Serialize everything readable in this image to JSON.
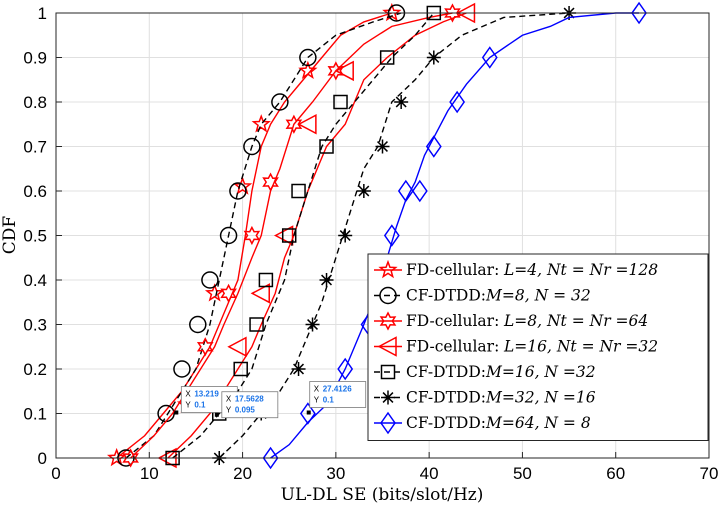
{
  "chart_data": {
    "type": "line",
    "xlabel": "UL-DL SE (bits/slot/Hz)",
    "ylabel": "CDF",
    "xlim": [
      0,
      70
    ],
    "ylim": [
      0,
      1
    ],
    "xticks": [
      0,
      10,
      20,
      30,
      40,
      50,
      60,
      70
    ],
    "yticks": [
      0,
      0.1,
      0.2,
      0.3,
      0.4,
      0.5,
      0.6,
      0.7,
      0.8,
      0.9,
      1
    ],
    "xtick_labels": [
      "0",
      "10",
      "20",
      "30",
      "40",
      "50",
      "60",
      "70"
    ],
    "ytick_labels": [
      "0",
      "0.1",
      "0.2",
      "0.3",
      "0.4",
      "0.5",
      "0.6",
      "0.7",
      "0.8",
      "0.9",
      "1"
    ],
    "grid": true,
    "legend_position": "right-middle",
    "series": [
      {
        "name": "FD-cellular",
        "legend_label": "FD-cellular:",
        "legend_expr": "L=4, Nt = Nr =128",
        "color": "#ff0000",
        "dash": "solid",
        "marker": "pentagram",
        "x": [
          6.5,
          9.5,
          11.5,
          13.5,
          15.0,
          16.5,
          17.5,
          18.5,
          19.5,
          20.3,
          21.0,
          22.0,
          23.0,
          24.5,
          26.5,
          28.5,
          30.5,
          33.0,
          36.0
        ],
        "y": [
          0,
          0.05,
          0.1,
          0.15,
          0.2,
          0.25,
          0.3,
          0.35,
          0.4,
          0.5,
          0.6,
          0.7,
          0.75,
          0.8,
          0.85,
          0.9,
          0.95,
          0.98,
          1
        ],
        "marker_x": [
          6.5,
          14.0,
          17.0,
          20.0,
          22.0,
          27.0,
          36.0
        ],
        "marker_y": [
          0,
          0.12,
          0.37,
          0.61,
          0.75,
          0.87,
          1
        ]
      },
      {
        "name": "CF-DTDD",
        "legend_label": "CF-DTDD:",
        "legend_expr": "M=8, N = 32",
        "color": "#000000",
        "dash": "dashed",
        "marker": "circle",
        "x": [
          7.5,
          10.5,
          12.0,
          13.5,
          15.0,
          16.5,
          17.5,
          18.5,
          19.5,
          21.0,
          22.0,
          24.0,
          27.0,
          30.0,
          34.0,
          37.0
        ],
        "y": [
          0,
          0.05,
          0.1,
          0.15,
          0.2,
          0.3,
          0.4,
          0.5,
          0.6,
          0.7,
          0.75,
          0.8,
          0.9,
          0.95,
          0.98,
          1
        ],
        "marker_x": [
          7.5,
          11.8,
          13.5,
          15.2,
          16.5,
          18.5,
          19.5,
          21.0,
          24.0,
          27.0,
          36.5
        ],
        "marker_y": [
          0,
          0.1,
          0.2,
          0.3,
          0.4,
          0.5,
          0.6,
          0.7,
          0.8,
          0.9,
          1
        ]
      },
      {
        "name": "FD-cellular",
        "legend_label": "FD-cellular:",
        "legend_expr": "L=8, Nt = Nr =64",
        "color": "#ff0000",
        "dash": "solid",
        "marker": "hexagram",
        "x": [
          8.0,
          10.5,
          12.5,
          14.0,
          15.5,
          17.0,
          18.0,
          19.5,
          21.0,
          22.0,
          23.0,
          24.0,
          25.5,
          27.5,
          30.0,
          33.0,
          36.0,
          40.0,
          42.5
        ],
        "y": [
          0,
          0.05,
          0.1,
          0.15,
          0.2,
          0.25,
          0.3,
          0.37,
          0.45,
          0.5,
          0.6,
          0.65,
          0.75,
          0.8,
          0.87,
          0.93,
          0.97,
          0.99,
          1
        ],
        "marker_x": [
          8.0,
          16.0,
          18.5,
          21.0,
          23.0,
          25.5,
          30.0,
          42.5
        ],
        "marker_y": [
          0,
          0.25,
          0.37,
          0.5,
          0.62,
          0.75,
          0.87,
          1
        ]
      },
      {
        "name": "FD-cellular",
        "legend_label": "FD-cellular:",
        "legend_expr": "L=16, Nt = Nr =32",
        "color": "#ff0000",
        "dash": "solid",
        "marker": "triangle-left",
        "x": [
          12.0,
          14.5,
          16.5,
          18.0,
          19.5,
          21.0,
          22.0,
          23.5,
          24.5,
          25.5,
          27.0,
          29.0,
          31.0,
          33.0,
          35.5,
          38.5,
          41.5,
          44.0
        ],
        "y": [
          0,
          0.05,
          0.1,
          0.15,
          0.2,
          0.25,
          0.3,
          0.37,
          0.45,
          0.5,
          0.6,
          0.7,
          0.75,
          0.85,
          0.9,
          0.95,
          0.98,
          1
        ],
        "marker_x": [
          12.0,
          19.5,
          22.0,
          24.5,
          27.0,
          31.0,
          44.0
        ],
        "marker_y": [
          0,
          0.25,
          0.37,
          0.5,
          0.75,
          0.87,
          1
        ]
      },
      {
        "name": "CF-DTDD",
        "legend_label": "CF-DTDD:",
        "legend_expr": "M=16, N =32",
        "color": "#000000",
        "dash": "dashed",
        "marker": "square",
        "x": [
          12.5,
          15.5,
          17.5,
          19.5,
          21.0,
          22.5,
          23.5,
          24.5,
          25.5,
          27.0,
          28.5,
          30.0,
          32.0,
          34.0,
          36.0,
          38.5,
          40.5
        ],
        "y": [
          0,
          0.05,
          0.1,
          0.15,
          0.2,
          0.3,
          0.35,
          0.4,
          0.5,
          0.6,
          0.7,
          0.75,
          0.8,
          0.85,
          0.9,
          0.95,
          1
        ],
        "marker_x": [
          12.5,
          17.5,
          19.8,
          21.5,
          22.5,
          25.0,
          26.0,
          29.0,
          30.5,
          35.5,
          40.5
        ],
        "marker_y": [
          0,
          0.1,
          0.2,
          0.3,
          0.4,
          0.5,
          0.6,
          0.7,
          0.8,
          0.9,
          1
        ]
      },
      {
        "name": "CF-DTDD",
        "legend_label": "CF-DTDD:",
        "legend_expr": "M=32, N =16",
        "color": "#000000",
        "dash": "dashed",
        "marker": "asterisk",
        "x": [
          17.5,
          20.0,
          22.0,
          24.0,
          25.5,
          26.5,
          27.5,
          28.5,
          30.0,
          31.5,
          33.0,
          34.5,
          36.0,
          38.5,
          40.5,
          43.5,
          48.0,
          55.0
        ],
        "y": [
          0,
          0.05,
          0.1,
          0.15,
          0.2,
          0.25,
          0.3,
          0.35,
          0.45,
          0.55,
          0.65,
          0.7,
          0.8,
          0.85,
          0.9,
          0.95,
          0.99,
          1
        ],
        "marker_x": [
          17.5,
          22.0,
          26.0,
          27.5,
          29.0,
          31.0,
          33.0,
          35.0,
          37.0,
          40.5,
          55.0
        ],
        "marker_y": [
          0,
          0.1,
          0.2,
          0.3,
          0.4,
          0.5,
          0.6,
          0.7,
          0.8,
          0.9,
          1
        ]
      },
      {
        "name": "CF-DTDD",
        "legend_label": "CF-DTDD:",
        "legend_expr": "M=64, N = 8",
        "color": "#0000ff",
        "dash": "solid",
        "marker": "diamond",
        "x": [
          23.0,
          25.0,
          27.0,
          29.0,
          31.0,
          33.0,
          34.5,
          35.5,
          36.5,
          37.5,
          38.5,
          39.5,
          40.5,
          42.0,
          44.0,
          46.5,
          50.0,
          53.0,
          55.0,
          60.0,
          62.5
        ],
        "y": [
          0,
          0.03,
          0.08,
          0.12,
          0.2,
          0.3,
          0.38,
          0.45,
          0.52,
          0.58,
          0.62,
          0.68,
          0.72,
          0.78,
          0.84,
          0.9,
          0.95,
          0.97,
          0.99,
          1,
          1
        ],
        "marker_x": [
          23.0,
          27.0,
          31.0,
          33.5,
          36.0,
          37.5,
          39.0,
          40.5,
          43.0,
          46.5,
          62.5
        ],
        "marker_y": [
          0,
          0.1,
          0.2,
          0.3,
          0.5,
          0.6,
          0.6,
          0.7,
          0.8,
          0.9,
          1
        ]
      }
    ],
    "datatips": [
      {
        "x_label": "X",
        "x_value": "13.219",
        "y_label": "Y",
        "y_value": "0.1",
        "at": [
          13.219,
          0.1
        ]
      },
      {
        "x_label": "X",
        "x_value": "17.5628",
        "y_label": "Y",
        "y_value": "0.095",
        "at": [
          17.5628,
          0.095
        ]
      },
      {
        "x_label": "X",
        "x_value": "27.4126",
        "y_label": "Y",
        "y_value": "0.1",
        "at": [
          27.4126,
          0.1
        ]
      }
    ]
  }
}
